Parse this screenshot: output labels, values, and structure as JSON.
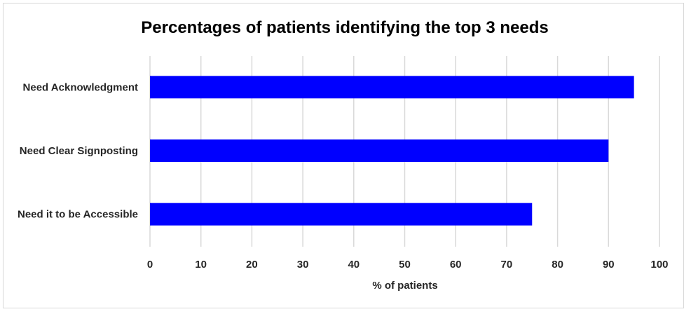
{
  "chart_data": {
    "type": "bar",
    "orientation": "horizontal",
    "title": "Percentages of patients identifying the top 3 needs",
    "xlabel": "% of patients",
    "ylabel": "",
    "categories": [
      "Need Acknowledgment",
      "Need Clear Signposting",
      "Need it to be Accessible"
    ],
    "values": [
      95,
      90,
      75
    ],
    "xlim": [
      0,
      100
    ],
    "xticks": [
      "0",
      "10",
      "20",
      "30",
      "40",
      "50",
      "60",
      "70",
      "80",
      "90",
      "100"
    ],
    "grid": true,
    "legend": "none",
    "bar_color": "#0000FF",
    "grid_color": "#d9d9d9"
  }
}
